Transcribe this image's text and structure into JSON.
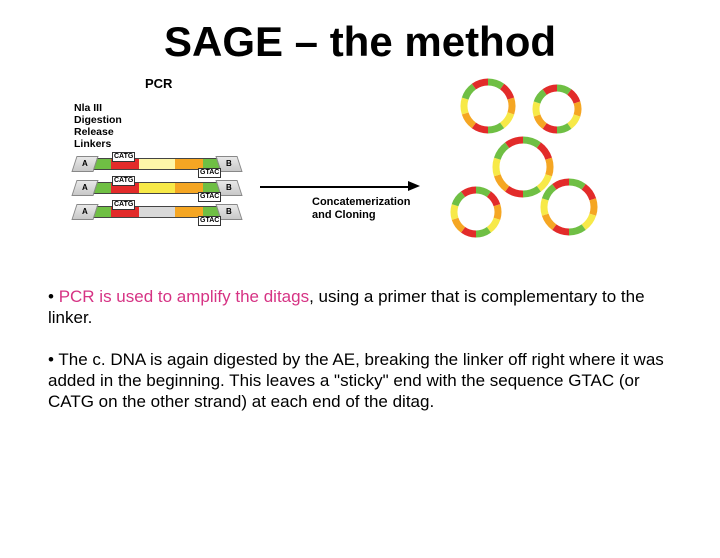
{
  "title": "SAGE – the method",
  "diagram": {
    "pcr_label": "PCR",
    "side_label_lines": [
      "Nla III",
      "Digestion",
      "Release",
      "Linkers"
    ],
    "linker_A": "A",
    "linker_B": "B",
    "catg": "CATG",
    "gtac": "GTAC",
    "concat_label_lines": [
      "Concatemerization",
      "and Cloning"
    ],
    "ditag_colors": {
      "green": "#6fbf44",
      "red": "#e22b2a",
      "orange": "#f5a623",
      "yellow": "#f7e948",
      "lightyellow": "#fdf6a8",
      "gray": "#d9d9d9"
    },
    "plasmid_segment_colors": [
      "#6fbf44",
      "#e22b2a",
      "#f5a623",
      "#f7e948",
      "#6fbf44",
      "#e22b2a",
      "#f5a623",
      "#f7e948",
      "#6fbf44",
      "#e22b2a"
    ],
    "arrow_color": "#000000"
  },
  "bullets": {
    "b1_pre": "• ",
    "b1_pink": "PCR is used to amplify the ditags",
    "b1_post": ", using a primer that is complementary to the linker.",
    "b2": "• The c. DNA is again digested by the AE, breaking the linker off right where it was added in the beginning.  This leaves a \"sticky\" end with the sequence GTAC (or CATG on the other strand) at each end of the ditag."
  }
}
